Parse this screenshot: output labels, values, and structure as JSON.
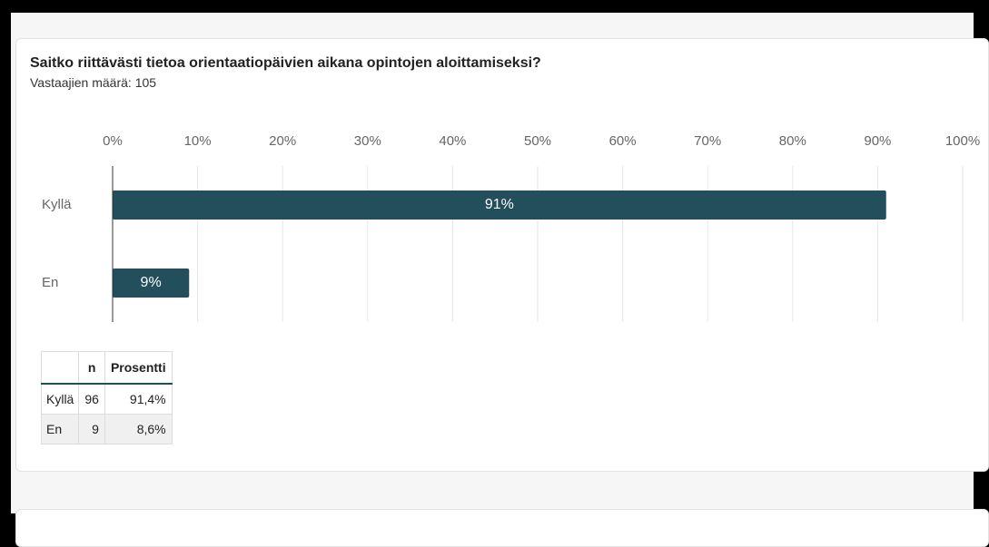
{
  "chart_data": {
    "type": "bar",
    "orientation": "horizontal",
    "title": "Saitko riittävästi tietoa orientaatiopäivien aikana opintojen aloittamiseksi?",
    "subtitle": "Vastaajien määrä: 105",
    "categories": [
      "Kyllä",
      "En"
    ],
    "values": [
      91,
      9
    ],
    "value_labels": [
      "91%",
      "9%"
    ],
    "color": "#234e5c",
    "xlim": [
      0,
      100
    ],
    "xticks": [
      {
        "value": 0,
        "label": "0%"
      },
      {
        "value": 10,
        "label": "10%"
      },
      {
        "value": 20,
        "label": "20%"
      },
      {
        "value": 30,
        "label": "30%"
      },
      {
        "value": 40,
        "label": "40%"
      },
      {
        "value": 50,
        "label": "50%"
      },
      {
        "value": 60,
        "label": "60%"
      },
      {
        "value": 70,
        "label": "70%"
      },
      {
        "value": 80,
        "label": "80%"
      },
      {
        "value": 90,
        "label": "90%"
      },
      {
        "value": 100,
        "label": "100%"
      }
    ],
    "grid": true
  },
  "table": {
    "header": [
      "n",
      "Prosentti"
    ],
    "rows": [
      [
        "Kyllä",
        "96",
        "91,4%"
      ],
      [
        "En",
        "9",
        "8,6%"
      ]
    ]
  }
}
